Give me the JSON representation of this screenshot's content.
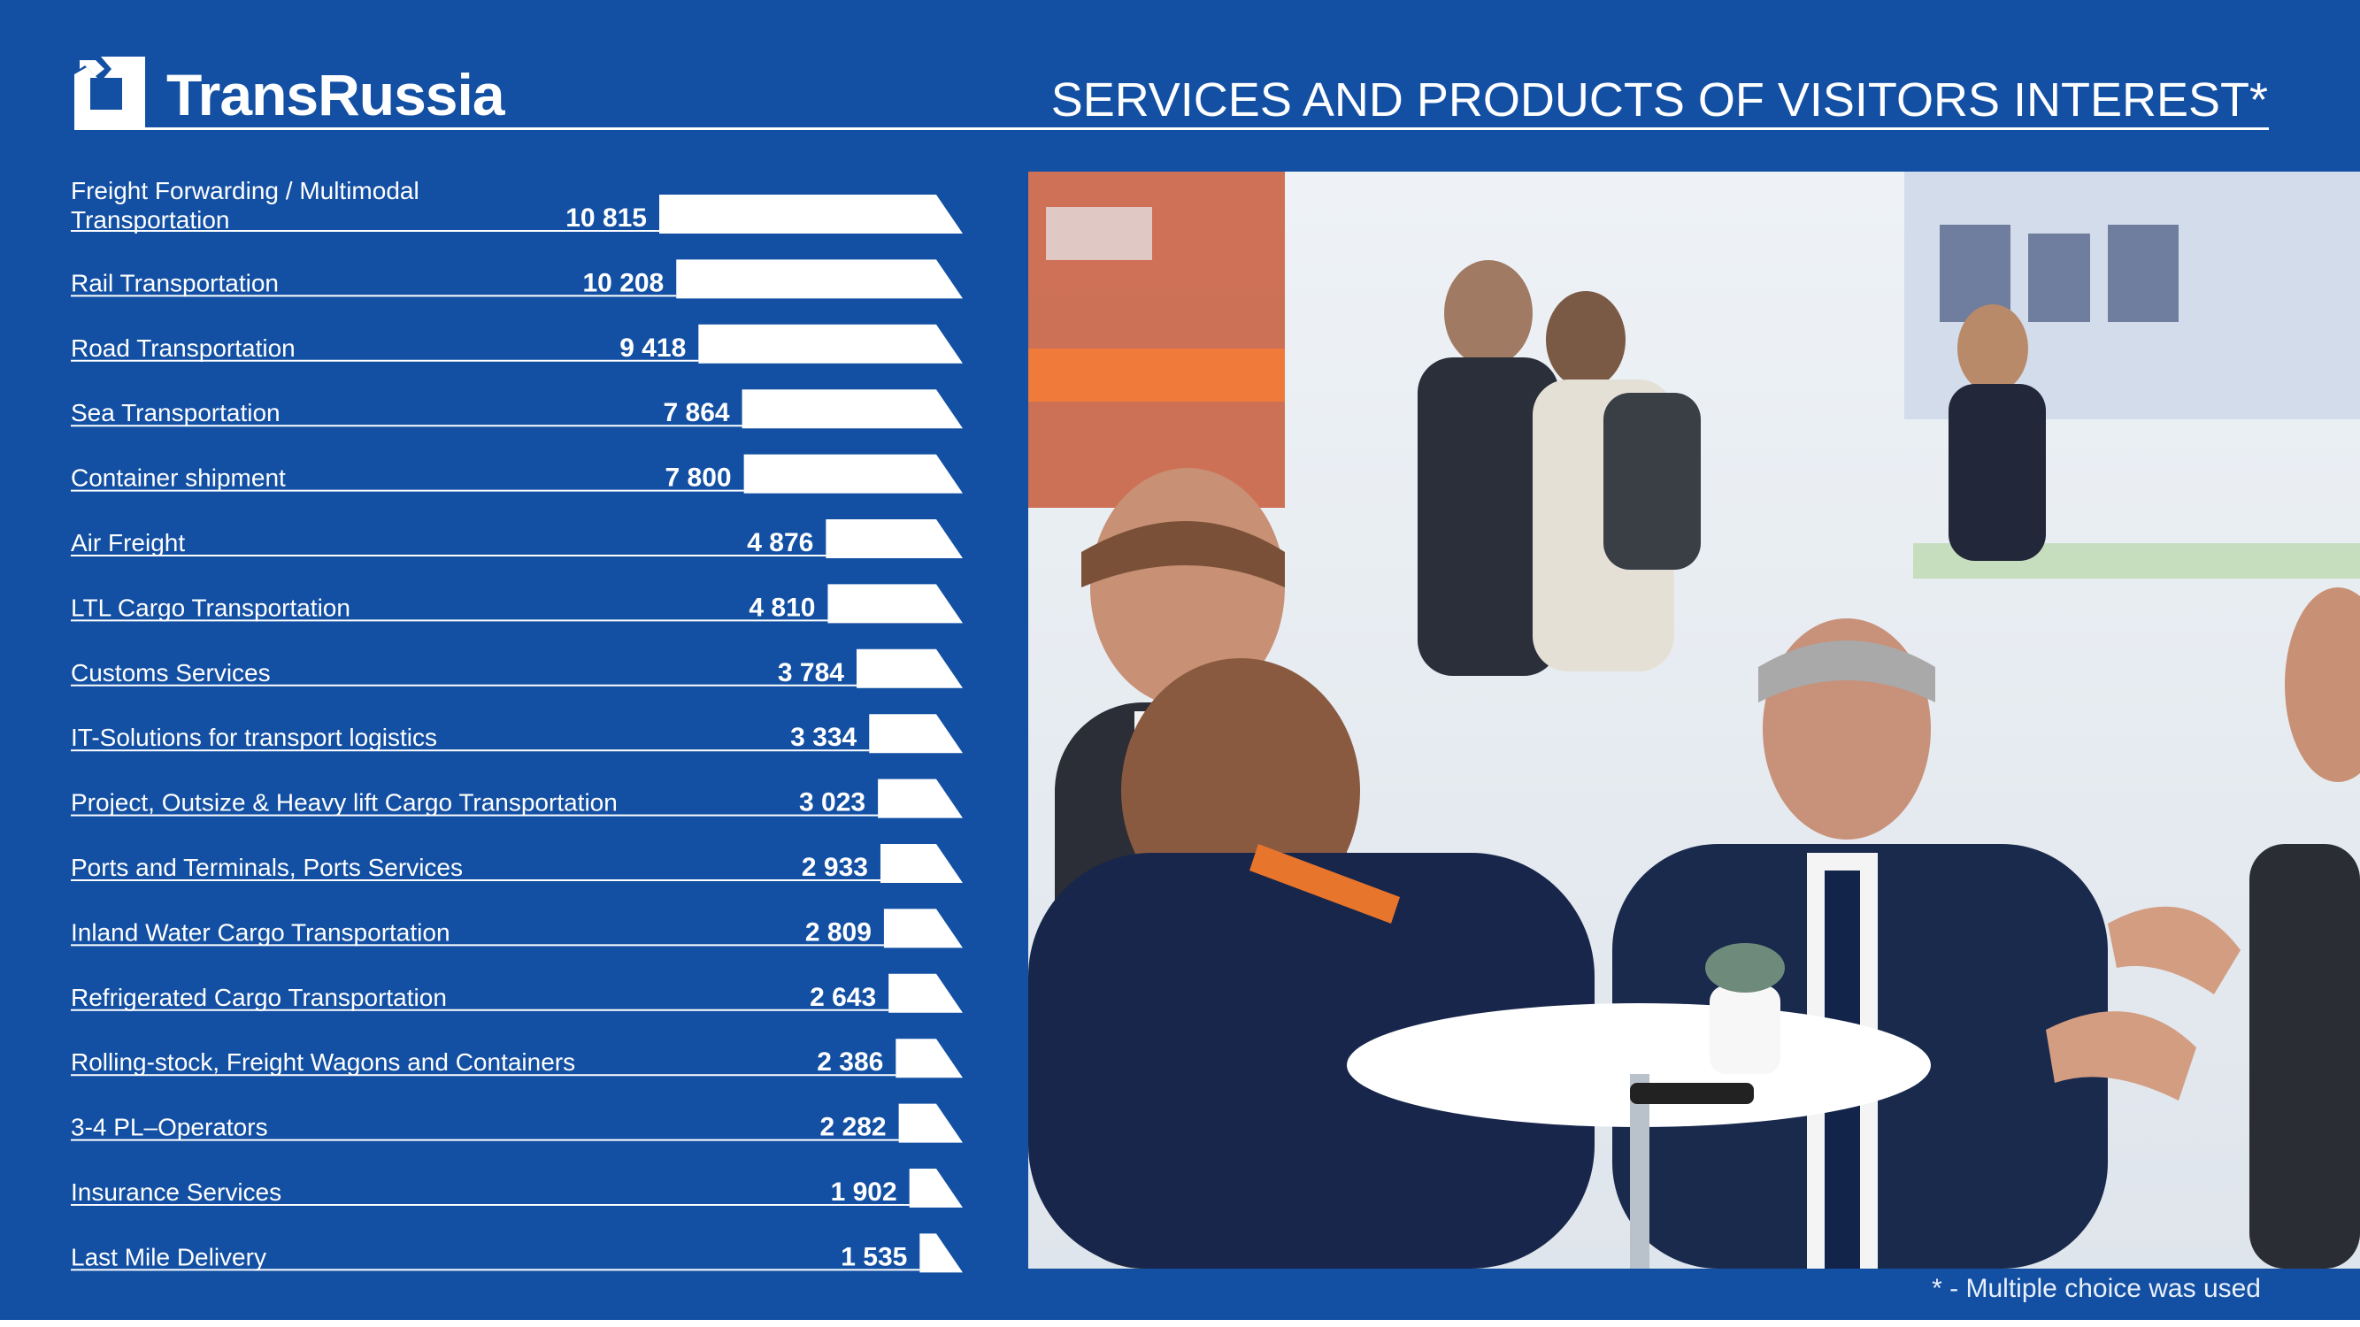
{
  "brand": {
    "name": "TransRussia"
  },
  "page": {
    "title": "SERVICES AND PRODUCTS OF VISITORS INTEREST*",
    "footnote": "* - Multiple choice was used"
  },
  "colors": {
    "background": "#1350a3",
    "bar": "#ffffff",
    "text": "#ffffff"
  },
  "photo": {
    "alt_icon": "exhibition-meeting-photo"
  },
  "chart_data": {
    "type": "bar",
    "orientation": "horizontal",
    "categories": [
      "Freight Forwarding / Multimodal Transportation",
      "Rail Transportation",
      "Road Transportation",
      "Sea Transportation",
      "Container shipment",
      "Air Freight",
      "LTL Cargo Transportation",
      "Customs Services",
      "IT-Solutions for transport logistics",
      "Project, Outsize & Heavy lift Cargo Transportation",
      "Ports and Terminals, Ports Services",
      "Inland Water Cargo Transportation",
      "Refrigerated Cargo Transportation",
      "Rolling-stock, Freight Wagons and Containers",
      "3-4 PL–Operators",
      "Insurance Services",
      "Last Mile Delivery"
    ],
    "values": [
      10815,
      10208,
      9418,
      7864,
      7800,
      4876,
      4810,
      3784,
      3334,
      3023,
      2933,
      2809,
      2643,
      2386,
      2282,
      1902,
      1535
    ],
    "value_labels": [
      "10 815",
      "10 208",
      "9 418",
      "7 864",
      "7 800",
      "4 876",
      "4 810",
      "3 784",
      "3 334",
      "3 023",
      "2 933",
      "2 809",
      "2 643",
      "2 386",
      "2 282",
      "1 902",
      "1 535"
    ],
    "title": "SERVICES AND PRODUCTS OF VISITORS INTEREST*",
    "xlabel": "",
    "ylabel": "",
    "grid": false,
    "legend": "none"
  }
}
